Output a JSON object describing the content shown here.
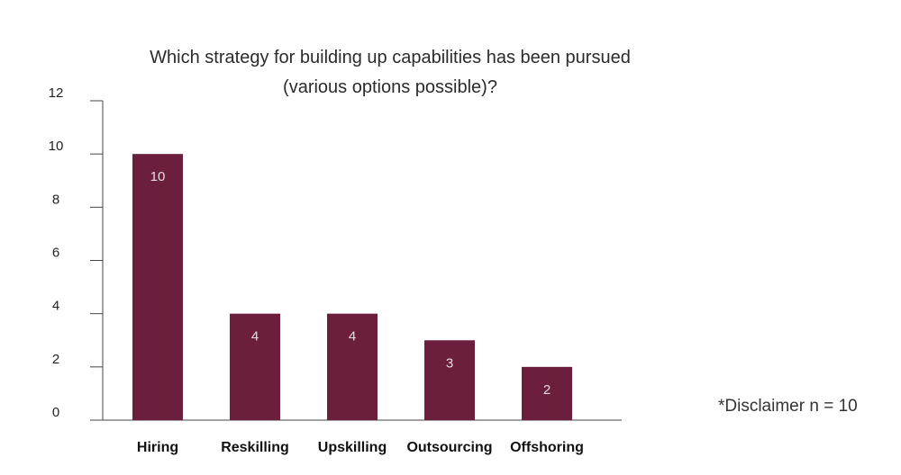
{
  "chart_data": {
    "type": "bar",
    "title_lines": [
      "Which strategy for building up capabilities has been pursued",
      "(various options possible)?"
    ],
    "categories": [
      "Hiring",
      "Reskilling",
      "Upskilling",
      "Outsourcing",
      "Offshoring"
    ],
    "values": [
      10,
      4,
      4,
      3,
      2
    ],
    "data_labels": [
      "10",
      "4",
      "4",
      "3",
      "2"
    ],
    "xlabel": "",
    "ylabel": "",
    "ylim": [
      0,
      12
    ],
    "yticks": [
      0,
      2,
      4,
      6,
      8,
      10,
      12
    ],
    "grid": false,
    "bar_color": "#6b1f3d"
  },
  "disclaimer": "*Disclaimer n = 10"
}
